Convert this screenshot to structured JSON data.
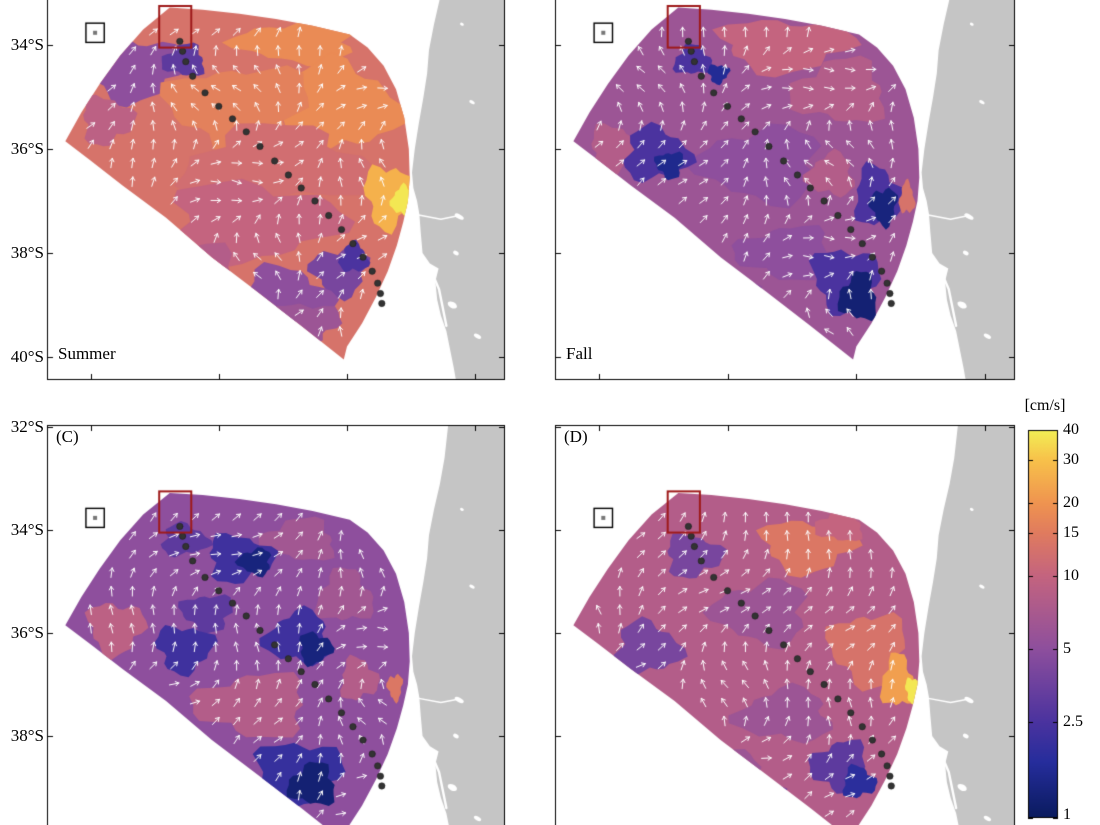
{
  "figure": {
    "background": "#ffffff"
  },
  "chart_data": {
    "type": "heatmap",
    "subtype": "seasonal surface current speed maps with velocity vectors and coastline",
    "units": "cm/s",
    "scale": "log",
    "value_range": [
      1,
      40
    ],
    "colorbar": {
      "title": "[cm/s]",
      "tick_labels": [
        "40",
        "30",
        "20",
        "15",
        "10",
        "5",
        "2.5",
        "1"
      ],
      "tick_values": [
        40,
        30,
        20,
        15,
        10,
        5,
        2.5,
        1
      ],
      "colormap": [
        {
          "v": 1,
          "color": "#0a1b5e"
        },
        {
          "v": 1.7,
          "color": "#262d9c"
        },
        {
          "v": 2.5,
          "color": "#4b339f"
        },
        {
          "v": 5,
          "color": "#8e4f9d"
        },
        {
          "v": 10,
          "color": "#c4647f"
        },
        {
          "v": 15,
          "color": "#e07b5f"
        },
        {
          "v": 20,
          "color": "#ef9450"
        },
        {
          "v": 30,
          "color": "#f8c14a"
        },
        {
          "v": 40,
          "color": "#f2ef55"
        }
      ]
    },
    "panels": [
      {
        "id": "A",
        "label": "Summer",
        "label_corner": "bottom-left",
        "ytick_labels": [
          "34°S",
          "36°S",
          "38°S",
          "40°S"
        ],
        "ytick_lats": [
          34,
          36,
          38,
          40
        ],
        "base_speed": 13,
        "arrow_seed": 1,
        "patches": [
          [
            0.19,
            34.45,
            0.105,
            0.6,
            5,
            1
          ],
          [
            0.3,
            34.3,
            0.045,
            0.3,
            3,
            2
          ],
          [
            0.13,
            35.45,
            0.055,
            0.45,
            9,
            3
          ],
          [
            0.55,
            33.95,
            0.13,
            0.4,
            18,
            4
          ],
          [
            0.64,
            35.2,
            0.12,
            0.85,
            18,
            5
          ],
          [
            0.42,
            35.2,
            0.15,
            0.8,
            16,
            6
          ],
          [
            0.5,
            36.3,
            0.2,
            0.7,
            12,
            7
          ],
          [
            0.745,
            36.9,
            0.05,
            0.6,
            26,
            8
          ],
          [
            0.775,
            37.0,
            0.022,
            0.28,
            38,
            9
          ],
          [
            0.45,
            37.4,
            0.18,
            0.75,
            10,
            10
          ],
          [
            0.3,
            38.55,
            0.12,
            0.7,
            8,
            11
          ],
          [
            0.52,
            38.9,
            0.1,
            0.6,
            5,
            12
          ],
          [
            0.64,
            38.35,
            0.06,
            0.45,
            4,
            13
          ],
          [
            0.67,
            38.1,
            0.03,
            0.28,
            2.5,
            14
          ],
          [
            0.56,
            39.35,
            0.075,
            0.4,
            6,
            15
          ]
        ]
      },
      {
        "id": "B",
        "label": "Fall",
        "label_corner": "bottom-left",
        "ytick_labels": [],
        "ytick_lats": [
          34,
          36,
          38,
          40
        ],
        "base_speed": 6,
        "arrow_seed": 2,
        "patches": [
          [
            0.5,
            34.0,
            0.14,
            0.5,
            10,
            1
          ],
          [
            0.62,
            34.9,
            0.1,
            0.6,
            8,
            2
          ],
          [
            0.13,
            36.0,
            0.055,
            0.45,
            8,
            3
          ],
          [
            0.45,
            36.3,
            0.13,
            0.7,
            5,
            4
          ],
          [
            0.22,
            36.1,
            0.07,
            0.5,
            2.5,
            5
          ],
          [
            0.25,
            36.3,
            0.03,
            0.25,
            1.5,
            6
          ],
          [
            0.3,
            34.3,
            0.04,
            0.28,
            2.5,
            7
          ],
          [
            0.355,
            34.55,
            0.022,
            0.18,
            1.6,
            8
          ],
          [
            0.6,
            36.5,
            0.05,
            0.4,
            8,
            9
          ],
          [
            0.2,
            37.6,
            0.06,
            0.4,
            8,
            10
          ],
          [
            0.5,
            38.0,
            0.1,
            0.5,
            5,
            11
          ],
          [
            0.7,
            36.9,
            0.05,
            0.55,
            2.5,
            12
          ],
          [
            0.715,
            37.1,
            0.028,
            0.35,
            1.3,
            13
          ],
          [
            0.765,
            36.95,
            0.016,
            0.3,
            13,
            14
          ],
          [
            0.63,
            38.5,
            0.07,
            0.6,
            2.5,
            15
          ],
          [
            0.66,
            38.85,
            0.04,
            0.45,
            1.2,
            16
          ],
          [
            0.35,
            38.8,
            0.08,
            0.5,
            5,
            17
          ]
        ]
      },
      {
        "id": "C",
        "label": "(C)",
        "label_corner": "top-left",
        "ytick_labels": [
          "32°S",
          "34°S",
          "36°S",
          "38°S"
        ],
        "ytick_lats": [
          32,
          34,
          36,
          38
        ],
        "base_speed": 5,
        "arrow_seed": 3,
        "patches": [
          [
            0.15,
            35.9,
            0.06,
            0.5,
            9,
            1
          ],
          [
            0.55,
            34.2,
            0.08,
            0.4,
            6.5,
            2
          ],
          [
            0.42,
            34.55,
            0.07,
            0.45,
            2.2,
            3
          ],
          [
            0.455,
            34.62,
            0.035,
            0.25,
            1.3,
            4
          ],
          [
            0.3,
            34.2,
            0.05,
            0.3,
            3,
            5
          ],
          [
            0.35,
            35.6,
            0.055,
            0.35,
            3,
            6
          ],
          [
            0.65,
            35.3,
            0.06,
            0.5,
            6.5,
            7
          ],
          [
            0.3,
            36.3,
            0.06,
            0.45,
            2.2,
            8
          ],
          [
            0.55,
            36.1,
            0.07,
            0.5,
            2.2,
            9
          ],
          [
            0.585,
            36.3,
            0.035,
            0.3,
            1.3,
            10
          ],
          [
            0.45,
            37.4,
            0.12,
            0.6,
            8,
            11
          ],
          [
            0.68,
            36.9,
            0.04,
            0.4,
            8,
            12
          ],
          [
            0.76,
            37.05,
            0.016,
            0.25,
            14,
            13
          ],
          [
            0.25,
            38.2,
            0.06,
            0.45,
            2.5,
            14
          ],
          [
            0.55,
            38.7,
            0.09,
            0.6,
            2,
            15
          ],
          [
            0.58,
            38.95,
            0.05,
            0.4,
            1.2,
            16
          ],
          [
            0.42,
            39.25,
            0.06,
            0.35,
            2.5,
            17
          ]
        ]
      },
      {
        "id": "D",
        "label": "(D)",
        "label_corner": "top-left",
        "ytick_labels": [],
        "ytick_lats": [
          32,
          34,
          36,
          38
        ],
        "base_speed": 8,
        "arrow_seed": 4,
        "patches": [
          [
            0.55,
            34.3,
            0.1,
            0.5,
            14,
            1
          ],
          [
            0.62,
            33.92,
            0.05,
            0.3,
            10,
            2
          ],
          [
            0.3,
            34.5,
            0.06,
            0.4,
            4,
            3
          ],
          [
            0.45,
            35.6,
            0.1,
            0.6,
            6,
            4
          ],
          [
            0.2,
            36.3,
            0.07,
            0.5,
            4,
            5
          ],
          [
            0.68,
            36.3,
            0.08,
            0.7,
            13,
            6
          ],
          [
            0.745,
            36.95,
            0.035,
            0.5,
            22,
            7
          ],
          [
            0.778,
            37.1,
            0.016,
            0.24,
            38,
            8
          ],
          [
            0.5,
            37.6,
            0.1,
            0.5,
            6,
            9
          ],
          [
            0.35,
            38.6,
            0.08,
            0.5,
            6,
            10
          ],
          [
            0.62,
            38.6,
            0.06,
            0.5,
            3,
            11
          ],
          [
            0.66,
            38.9,
            0.035,
            0.3,
            1.8,
            12
          ],
          [
            0.45,
            39.2,
            0.05,
            0.3,
            4,
            13
          ]
        ]
      }
    ],
    "map": {
      "fan_outline": [
        [
          0.04,
          35.85
        ],
        [
          0.075,
          35.3
        ],
        [
          0.115,
          34.75
        ],
        [
          0.16,
          34.2
        ],
        [
          0.21,
          33.7
        ],
        [
          0.268,
          33.28
        ],
        [
          0.34,
          33.32
        ],
        [
          0.42,
          33.4
        ],
        [
          0.5,
          33.5
        ],
        [
          0.58,
          33.63
        ],
        [
          0.661,
          33.8
        ],
        [
          0.7,
          34.05
        ],
        [
          0.735,
          34.4
        ],
        [
          0.762,
          34.85
        ],
        [
          0.78,
          35.4
        ],
        [
          0.79,
          36.0
        ],
        [
          0.792,
          36.55
        ],
        [
          0.788,
          37.0
        ],
        [
          0.778,
          37.4
        ],
        [
          0.764,
          37.85
        ],
        [
          0.744,
          38.35
        ],
        [
          0.718,
          38.85
        ],
        [
          0.688,
          39.35
        ],
        [
          0.655,
          39.8
        ],
        [
          0.648,
          40.05
        ],
        [
          0.555,
          39.4
        ],
        [
          0.46,
          38.75
        ],
        [
          0.36,
          38.08
        ],
        [
          0.26,
          37.32
        ],
        [
          0.165,
          36.7
        ],
        [
          0.095,
          36.22
        ]
      ],
      "coastline": [
        [
          0.878,
          31.8
        ],
        [
          0.868,
          32.6
        ],
        [
          0.858,
          33.1
        ],
        [
          0.845,
          33.6
        ],
        [
          0.834,
          34.1
        ],
        [
          0.83,
          34.55
        ],
        [
          0.822,
          35.0
        ],
        [
          0.812,
          35.5
        ],
        [
          0.803,
          36.0
        ],
        [
          0.797,
          36.45
        ],
        [
          0.8,
          36.75
        ],
        [
          0.808,
          37.0
        ],
        [
          0.813,
          37.25
        ],
        [
          0.816,
          37.6
        ],
        [
          0.82,
          38.0
        ],
        [
          0.836,
          38.2
        ],
        [
          0.855,
          38.3
        ],
        [
          0.848,
          38.55
        ],
        [
          0.852,
          38.9
        ],
        [
          0.86,
          39.2
        ],
        [
          0.872,
          39.5
        ],
        [
          0.88,
          39.85
        ],
        [
          0.888,
          40.2
        ],
        [
          0.896,
          40.6
        ]
      ],
      "lakes": [
        [
          0.9,
          37.3,
          5,
          2.2
        ],
        [
          0.893,
          38.0,
          3,
          2
        ],
        [
          0.885,
          39.0,
          5,
          3
        ],
        [
          0.928,
          35.1,
          3,
          1.6
        ],
        [
          0.906,
          33.6,
          2,
          1.4
        ],
        [
          0.94,
          39.6,
          4,
          2
        ]
      ],
      "channel": [
        [
          0.838,
          38.32
        ],
        [
          0.856,
          38.7
        ],
        [
          0.864,
          39.05
        ],
        [
          0.872,
          39.4
        ]
      ],
      "river": [
        [
          0.8,
          37.25
        ],
        [
          0.86,
          37.35
        ],
        [
          0.9,
          37.28
        ]
      ],
      "transect_dots": [
        [
          0.29,
          33.93
        ],
        [
          0.296,
          34.12
        ],
        [
          0.303,
          34.32
        ],
        [
          0.318,
          34.6
        ],
        [
          0.345,
          34.92
        ],
        [
          0.375,
          35.18
        ],
        [
          0.405,
          35.42
        ],
        [
          0.435,
          35.67
        ],
        [
          0.465,
          35.95
        ],
        [
          0.497,
          36.23
        ],
        [
          0.527,
          36.5
        ],
        [
          0.555,
          36.75
        ],
        [
          0.585,
          37.0
        ],
        [
          0.615,
          37.28
        ],
        [
          0.643,
          37.55
        ],
        [
          0.668,
          37.82
        ],
        [
          0.69,
          38.08
        ],
        [
          0.71,
          38.35
        ],
        [
          0.722,
          38.58
        ],
        [
          0.728,
          38.78
        ],
        [
          0.731,
          38.97
        ]
      ],
      "red_box": {
        "x0": 0.245,
        "lat0": 33.25,
        "x1": 0.315,
        "lat1": 34.05,
        "color": "#9e1a1a"
      },
      "marker_box": {
        "x0": 0.085,
        "lat0": 33.58,
        "x1": 0.125,
        "lat1": 33.95,
        "color": "#000000"
      },
      "land_color": "#c5c5c5",
      "dot_color": "#333333",
      "arrow_color": "#ffffff"
    }
  }
}
